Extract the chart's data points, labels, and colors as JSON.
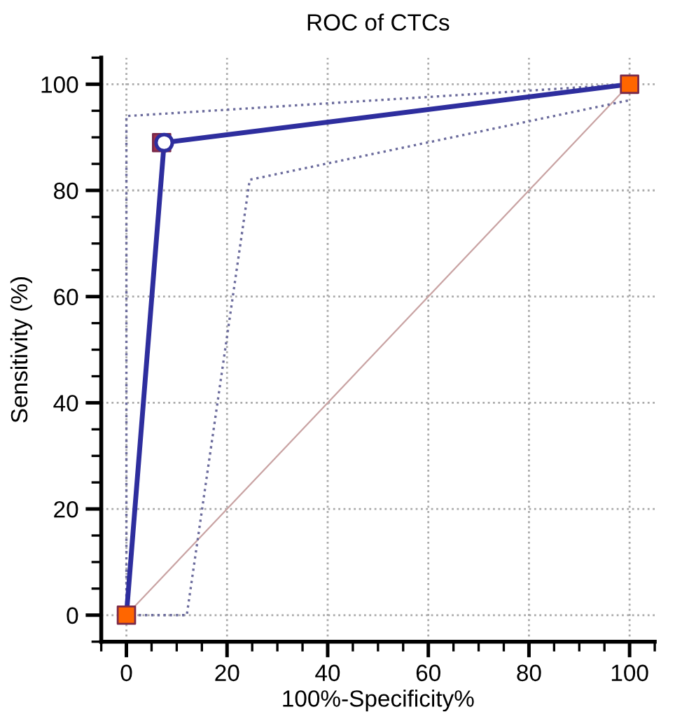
{
  "chart_data": {
    "type": "line",
    "title": "ROC of CTCs",
    "xlabel": "100%-Specificity%",
    "ylabel": "Sensitivity (%)",
    "xlim": [
      -5,
      105
    ],
    "ylim": [
      -5,
      105
    ],
    "xticks": [
      0,
      20,
      40,
      60,
      80,
      100
    ],
    "yticks": [
      0,
      20,
      40,
      60,
      80,
      100
    ],
    "grid": true,
    "legend": false,
    "series": [
      {
        "x": [
          0,
          100
        ],
        "values": [
          0,
          100
        ],
        "color": "#c9a3a3",
        "line_style": "solid",
        "marker": "none"
      },
      {
        "x": [
          0,
          0,
          100
        ],
        "values": [
          0,
          94,
          100
        ],
        "color": "#6b6b9c",
        "line_style": "dotted",
        "marker": "none"
      },
      {
        "x": [
          0,
          12,
          24.5,
          100
        ],
        "values": [
          0,
          0,
          82,
          97
        ],
        "color": "#6b6b9c",
        "line_style": "dotted",
        "marker": "none"
      },
      {
        "x": [
          0,
          7.5,
          100
        ],
        "values": [
          0,
          89,
          100
        ],
        "color": "#2e2e9e",
        "line_style": "solid",
        "marker": "none"
      },
      {
        "type": "scatter",
        "x": [
          0,
          7,
          100
        ],
        "values": [
          0,
          89,
          100
        ],
        "colors": [
          "#ff6600",
          "#a0304a",
          "#ff6600"
        ],
        "marker": "square"
      },
      {
        "type": "scatter",
        "x": [
          7.5
        ],
        "values": [
          89
        ],
        "color": "#ffffff",
        "marker": "circle"
      }
    ]
  }
}
